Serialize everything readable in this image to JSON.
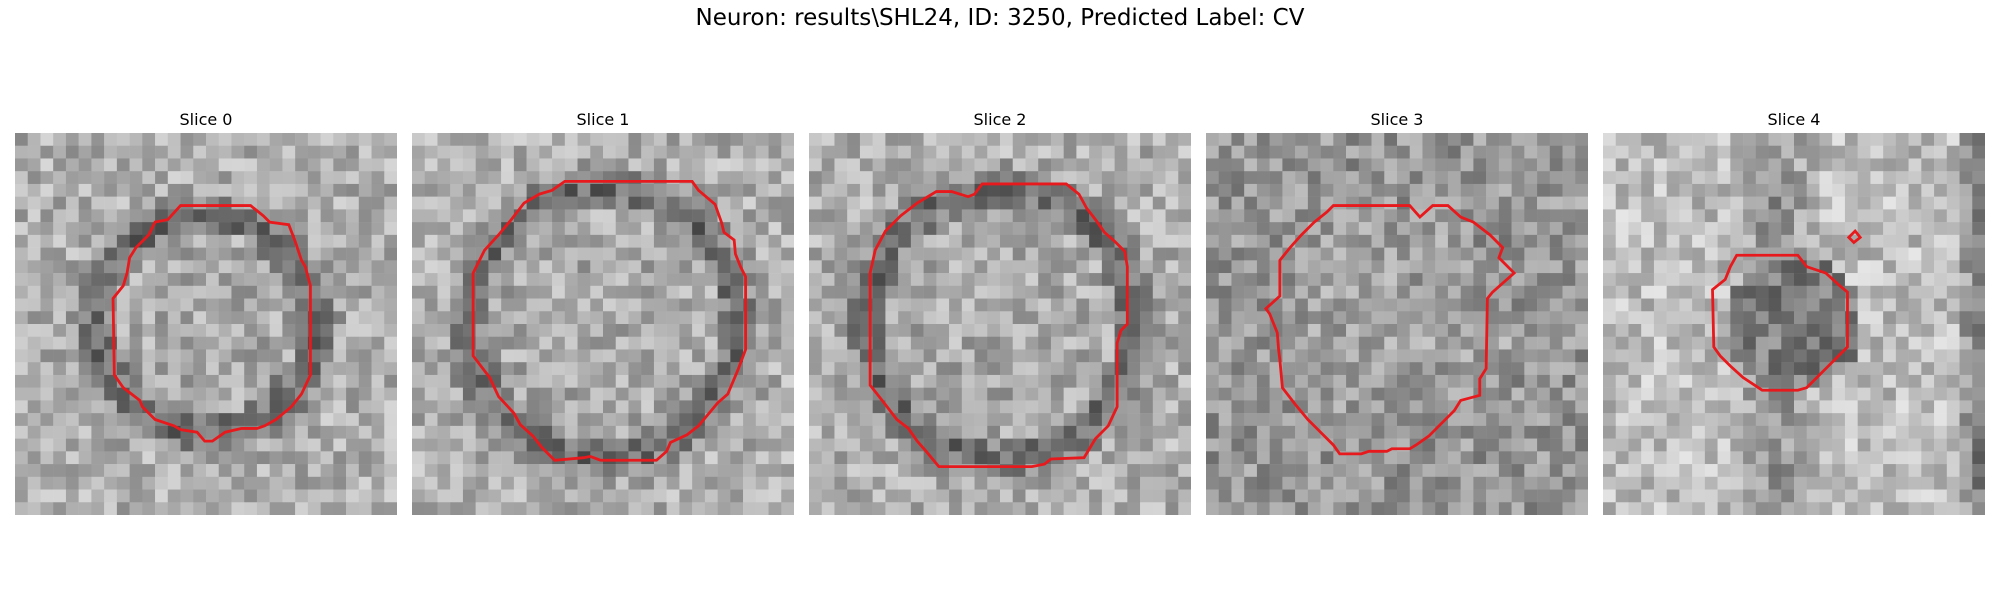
{
  "figure": {
    "title": "Neuron: results\\SHL24, ID: 3250, Predicted Label: CV"
  },
  "panels": [
    {
      "title": "Slice 0",
      "seed": 11,
      "pattern": "ring",
      "inner": "light"
    },
    {
      "title": "Slice 1",
      "seed": 23,
      "pattern": "ring",
      "inner": "light"
    },
    {
      "title": "Slice 2",
      "seed": 37,
      "pattern": "ring",
      "inner": "light"
    },
    {
      "title": "Slice 3",
      "seed": 51,
      "pattern": "noise",
      "inner": "mid"
    },
    {
      "title": "Slice 4",
      "seed": 67,
      "pattern": "cross",
      "inner": "mid"
    }
  ],
  "colors": {
    "contour": "#e8191c",
    "background": "#ffffff"
  }
}
